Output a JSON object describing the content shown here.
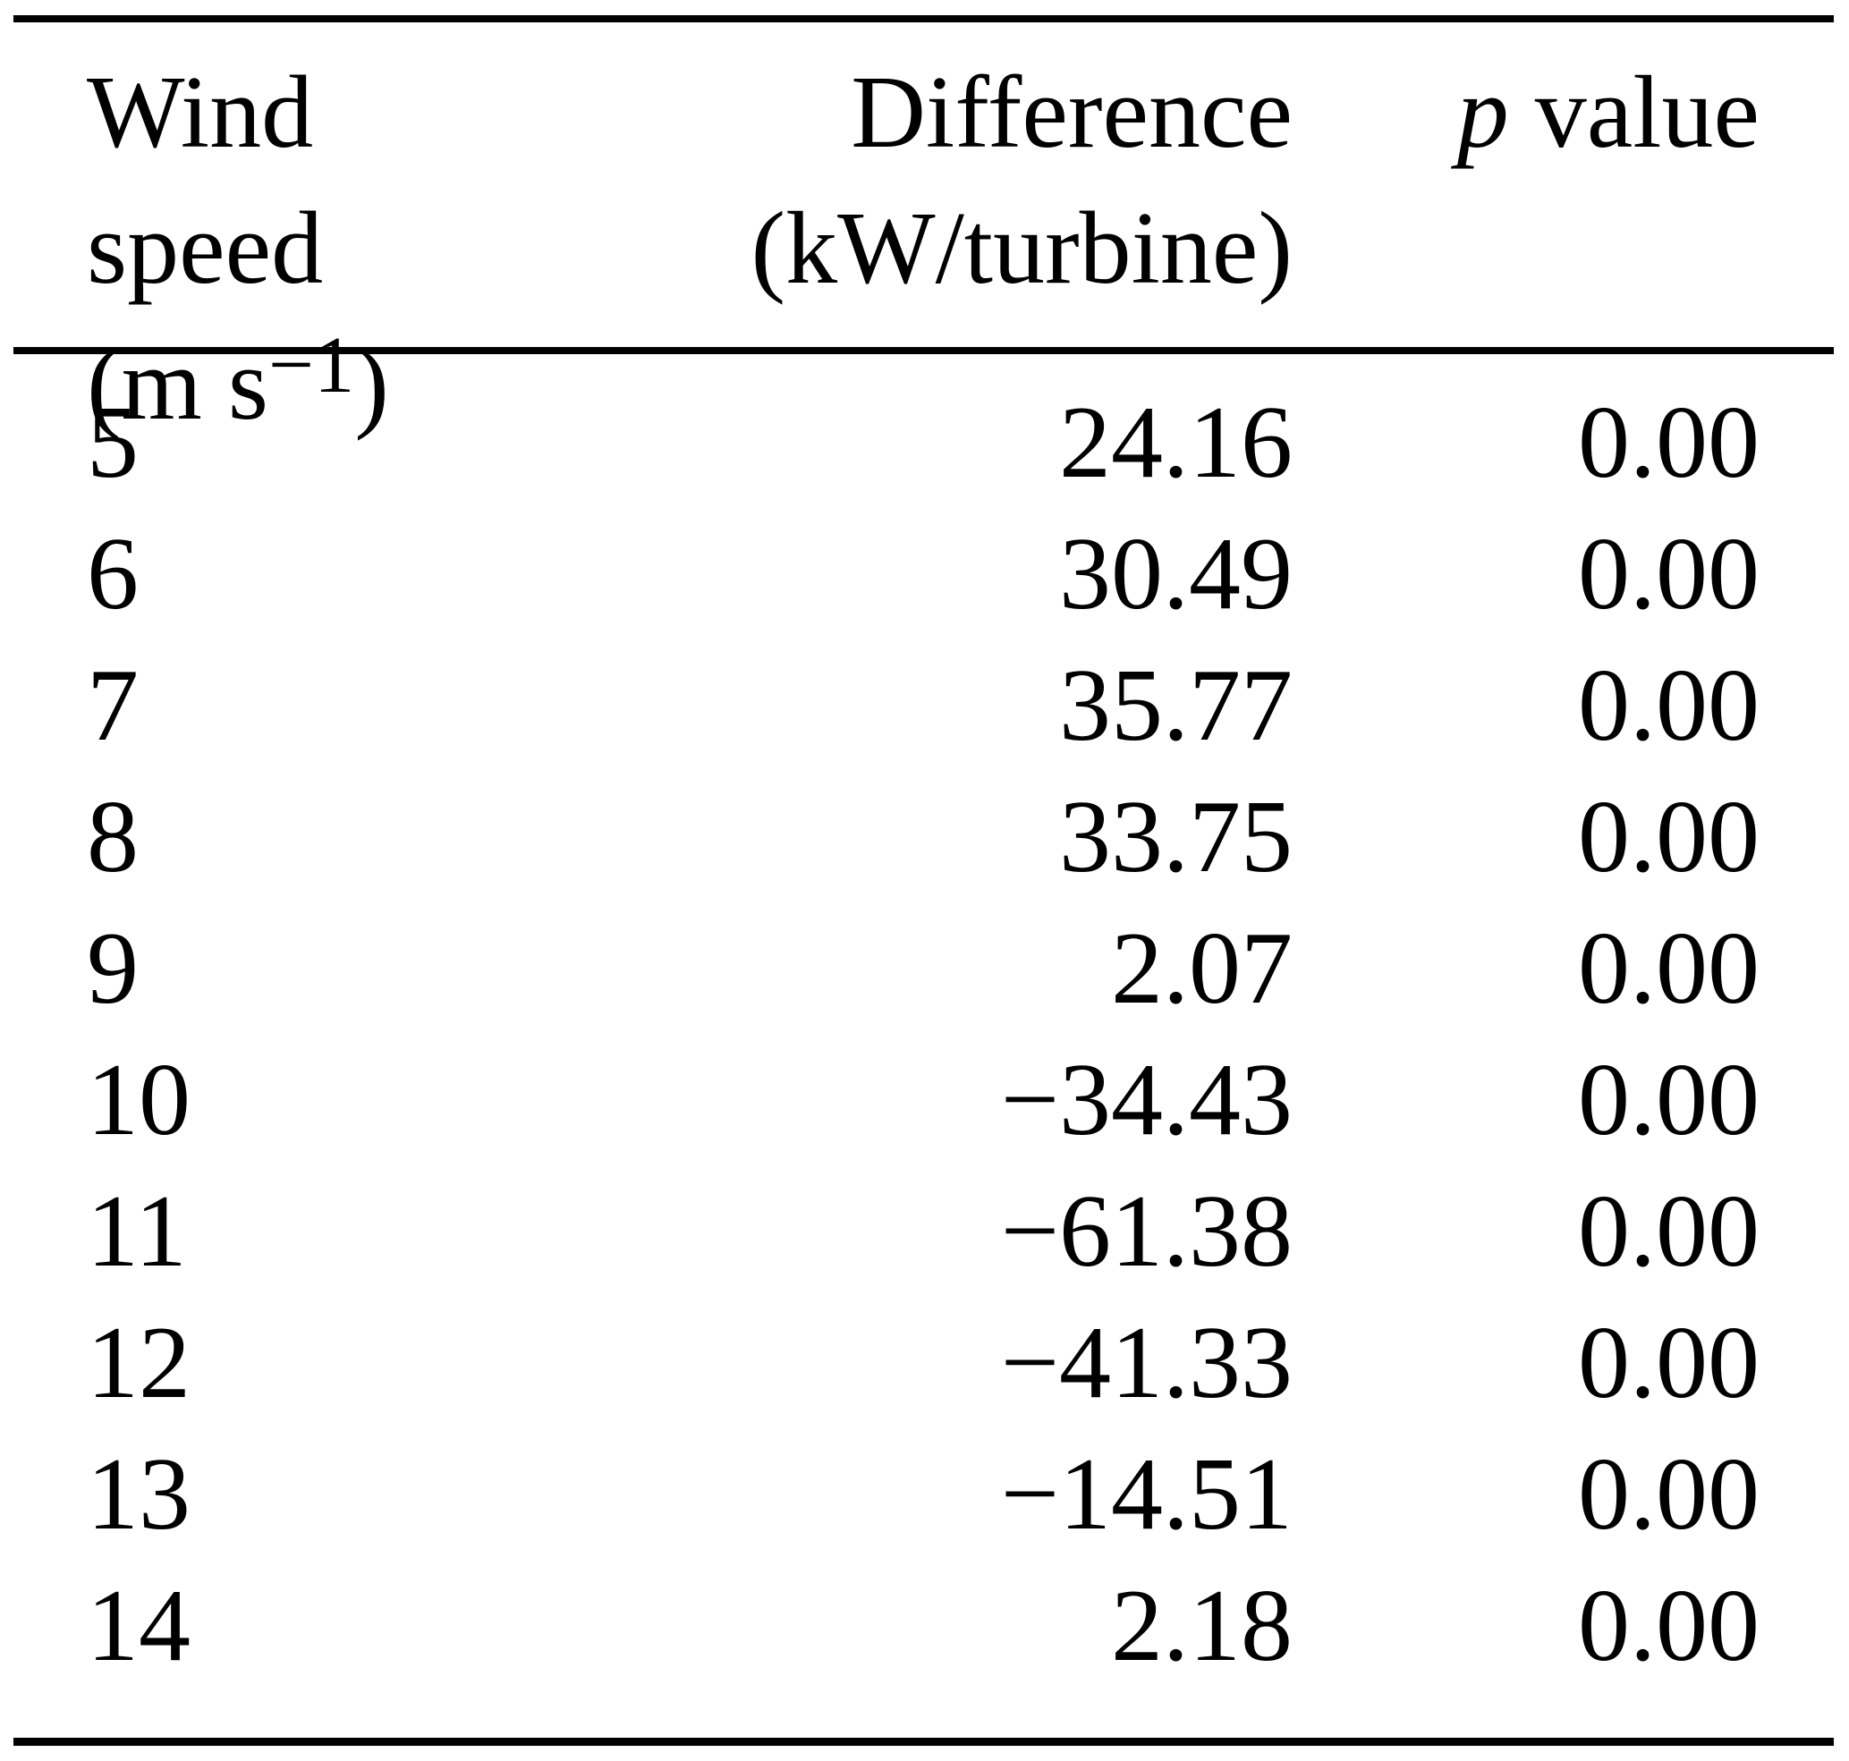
{
  "table": {
    "header": {
      "col1": {
        "line1": "Wind speed",
        "unit_prefix": "(m s",
        "unit_sup": "−1",
        "unit_suffix": ")"
      },
      "col2": {
        "line1": "Difference",
        "line2": "(kW/turbine)"
      },
      "col3": {
        "p": "p",
        "rest": " value"
      }
    },
    "rows": [
      {
        "speed": "5",
        "difference": "24.16",
        "p_value": "0.00"
      },
      {
        "speed": "6",
        "difference": "30.49",
        "p_value": "0.00"
      },
      {
        "speed": "7",
        "difference": "35.77",
        "p_value": "0.00"
      },
      {
        "speed": "8",
        "difference": "33.75",
        "p_value": "0.00"
      },
      {
        "speed": "9",
        "difference": "2.07",
        "p_value": "0.00"
      },
      {
        "speed": "10",
        "difference": "−34.43",
        "p_value": "0.00"
      },
      {
        "speed": "11",
        "difference": "−61.38",
        "p_value": "0.00"
      },
      {
        "speed": "12",
        "difference": "−41.33",
        "p_value": "0.00"
      },
      {
        "speed": "13",
        "difference": "−14.51",
        "p_value": "0.00"
      },
      {
        "speed": "14",
        "difference": "2.18",
        "p_value": "0.00"
      }
    ]
  }
}
